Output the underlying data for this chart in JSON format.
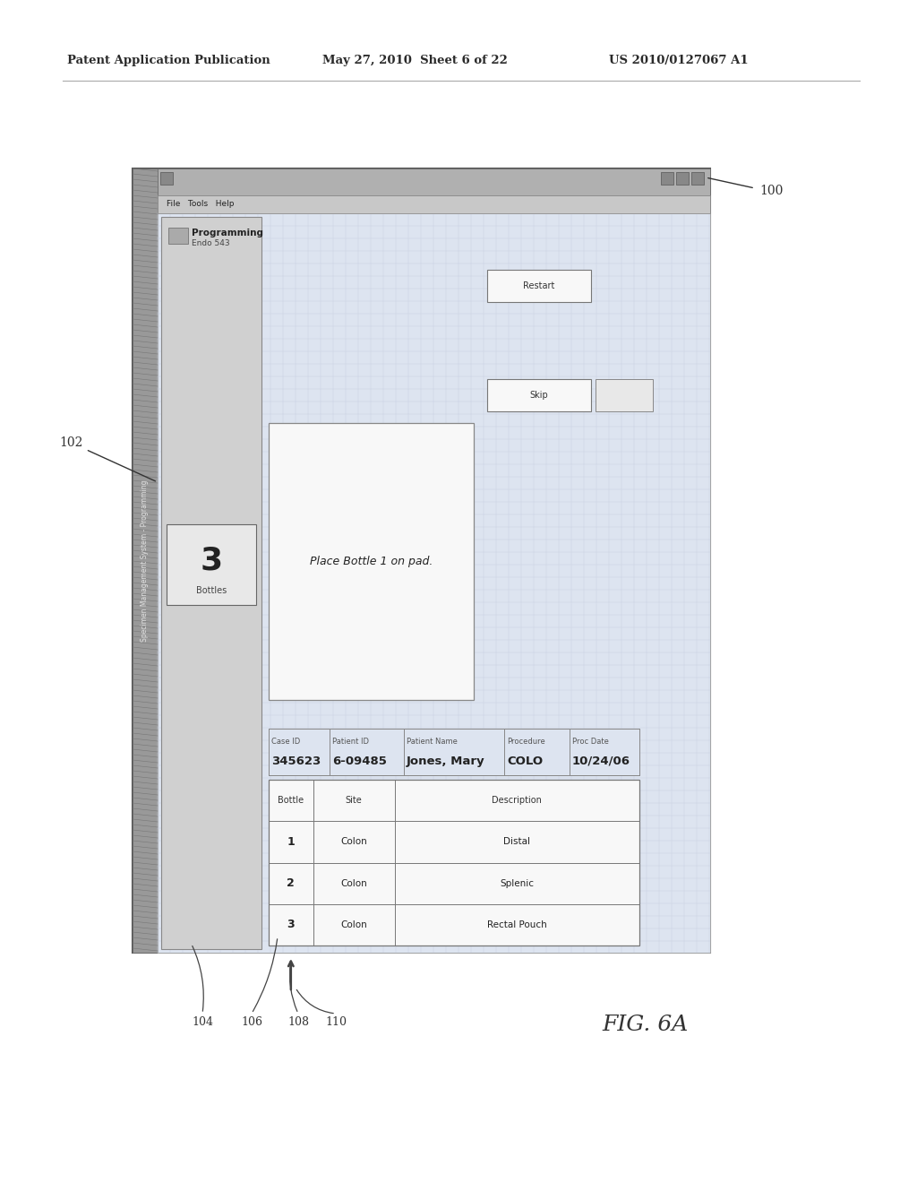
{
  "bg_color": "#ffffff",
  "header_left": "Patent Application Publication",
  "header_mid": "May 27, 2010  Sheet 6 of 22",
  "header_right": "US 2010/0127067 A1",
  "fig_label": "FIG. 6A",
  "label_100": "100",
  "label_102": "102",
  "label_104": "104",
  "label_106": "106",
  "label_108": "108",
  "label_110": "110",
  "title_bar_text": "Specimen Management System - Programming",
  "menu_bar": "File   Tools   Help",
  "left_panel_title": "Programming",
  "left_panel_sub": "Endo 543",
  "bottles_box_num": "3",
  "bottles_box_label": "Bottles",
  "instruction_text": "Place Bottle 1 on pad.",
  "case_id_label": "Case ID",
  "case_id_value": "345623",
  "patient_id_label": "Patient ID",
  "patient_id_value": "6-09485",
  "patient_name_label": "Patient Name",
  "patient_name_value": "Jones, Mary",
  "procedure_label": "Procedure",
  "procedure_value": "COLO",
  "proc_date_label": "Proc Date",
  "proc_date_value": "10/24/06",
  "table_headers": [
    "Bottle",
    "Site",
    "Description"
  ],
  "table_rows": [
    [
      "1",
      "Colon",
      "Distal"
    ],
    [
      "2",
      "Colon",
      "Splenic"
    ],
    [
      "3",
      "Colon",
      "Rectal Pouch"
    ]
  ],
  "button1": "Restart",
  "button2": "Skip",
  "outer_bg": "#b8b8b8",
  "screen_bg": "#dde4f0",
  "grid_color": "#c8d0e0",
  "left_sidebar_bg": "#a0a0a0",
  "panel_bg": "#d0d0d0",
  "box_bg": "#e8e8e8",
  "white_box": "#f8f8f8"
}
